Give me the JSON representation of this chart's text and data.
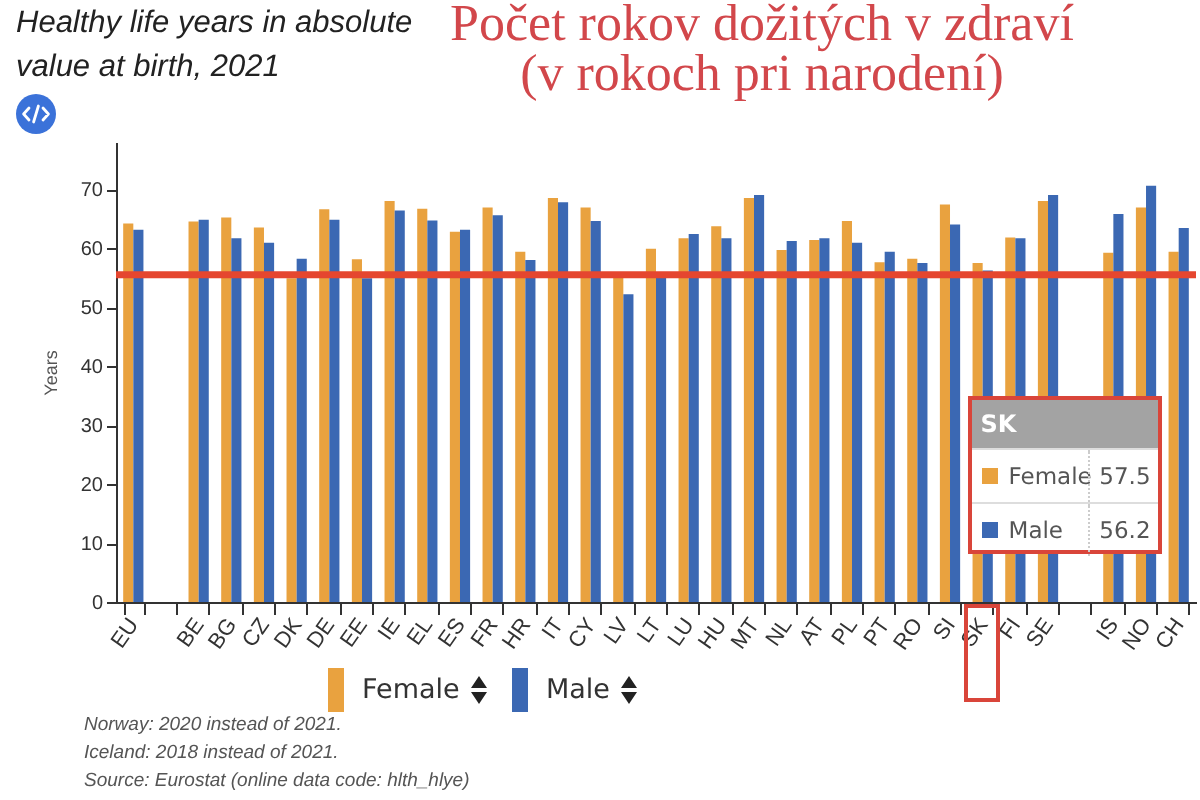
{
  "chart_data": {
    "type": "bar",
    "title": "Healthy life years in absolute value at birth, 2021",
    "subtitle": "Počet rokov dožitých v zdraví (v rokoch pri narodení)",
    "ylabel": "Years",
    "categories": [
      "EU",
      null,
      "BE",
      "BG",
      "CZ",
      "DK",
      "DE",
      "EE",
      "IE",
      "EL",
      "ES",
      "FR",
      "HR",
      "IT",
      "CY",
      "LV",
      "LT",
      "LU",
      "HU",
      "MT",
      "NL",
      "AT",
      "PL",
      "PT",
      "RO",
      "SI",
      "SK",
      "FI",
      "SE",
      null,
      "IS",
      "NO",
      "CH"
    ],
    "series": [
      {
        "name": "Female",
        "color": "#e9a23f",
        "values": [
          64.2,
          null,
          64.5,
          65.2,
          63.5,
          54.9,
          66.6,
          58.1,
          68.0,
          66.7,
          62.8,
          66.9,
          59.4,
          68.5,
          66.9,
          55.3,
          59.9,
          61.7,
          63.7,
          68.5,
          59.7,
          61.4,
          64.6,
          57.6,
          58.2,
          67.4,
          57.5,
          61.8,
          68.0,
          null,
          59.2,
          66.9,
          59.4
        ],
        "value_labels": [
          null,
          null,
          null,
          null,
          null,
          null,
          null,
          null,
          null,
          null,
          null,
          null,
          null,
          null,
          null,
          null,
          null,
          null,
          null,
          null,
          null,
          null,
          null,
          null,
          null,
          null,
          "57.5",
          null,
          null,
          null,
          null,
          null,
          null
        ]
      },
      {
        "name": "Male",
        "color": "#3b68b3",
        "values": [
          63.1,
          null,
          64.8,
          61.7,
          60.9,
          58.2,
          64.8,
          54.9,
          66.4,
          64.7,
          63.1,
          65.6,
          58.0,
          67.8,
          64.6,
          52.2,
          55.2,
          62.4,
          61.7,
          69.0,
          61.2,
          61.7,
          60.9,
          59.4,
          57.5,
          64.0,
          56.2,
          61.7,
          69.0,
          null,
          65.8,
          70.6,
          63.4
        ],
        "value_labels": [
          null,
          null,
          null,
          null,
          null,
          null,
          null,
          null,
          null,
          null,
          null,
          null,
          null,
          null,
          null,
          null,
          null,
          null,
          null,
          null,
          null,
          null,
          null,
          null,
          null,
          null,
          "56.2",
          null,
          null,
          null,
          null,
          null,
          null
        ]
      }
    ],
    "ylim": [
      0,
      78
    ],
    "yticks": [
      0,
      10,
      20,
      30,
      40,
      50,
      60,
      70
    ],
    "legend": "bottom",
    "ref_lines": [
      {
        "axis": "y",
        "value": 55.5,
        "color": "#e5462f"
      }
    ],
    "annotations": [
      {
        "text": "SK",
        "x": "SK"
      },
      "Norway: 2020 instead of 2021.",
      "Iceland: 2018 instead of 2021.",
      "Source: Eurostat (online data code: hlth_hlye)"
    ]
  }
}
